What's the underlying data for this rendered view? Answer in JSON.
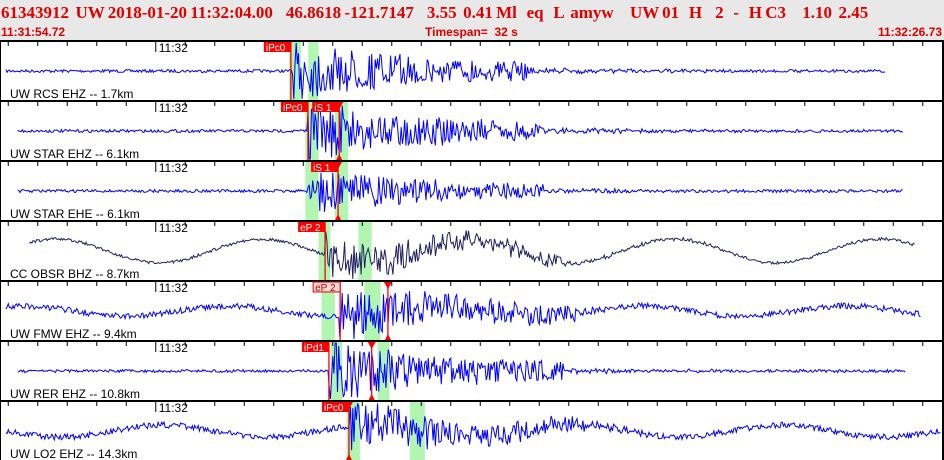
{
  "header": {
    "title": "61343912  UW 2018-01-20 11:32:04.00    46.8618 -121.7147    3.55  0.41 Ml   eq   L  amyw     UW 01   H    2   -   H C3     1.10  2.45",
    "start_time": "11:31:54.72",
    "timespan_label": "Timespan=  32 s",
    "end_time": "11:32:26.73"
  },
  "axis": {
    "minute_label": "11:32",
    "span_seconds": 32,
    "minute_offset_s": 5.28
  },
  "colors": {
    "trace": "#0000ff",
    "trace_dark": "#202060",
    "pick": "#ff0000",
    "window": "#b0f5b0",
    "header_text": "#e00000"
  },
  "channels": [
    {
      "label": "UW RCS EHZ -- 1.7km",
      "color": "#0000ff",
      "t0": 0.2,
      "t1": 30.0,
      "onset": 9.9,
      "amp": 26,
      "noise": 1.5,
      "wave": 0,
      "picks": [
        {
          "label": "iPc0",
          "time": 9.86,
          "style": "solid"
        }
      ],
      "windows": [
        [
          9.8,
          10.2
        ],
        [
          10.45,
          10.8
        ]
      ]
    },
    {
      "label": "UW STAR EHZ -- 6.1km",
      "color": "#0000ff",
      "t0": 0.6,
      "t1": 30.6,
      "onset": 10.4,
      "amp": 26,
      "noise": 1.5,
      "wave": 0,
      "picks": [
        {
          "label": "iPc0",
          "time": 10.44,
          "style": "solid"
        },
        {
          "label": "iS 1",
          "time": 11.5,
          "style": "solid",
          "tri": true
        }
      ],
      "windows": [
        [
          10.35,
          10.8
        ],
        [
          11.35,
          11.8
        ]
      ]
    },
    {
      "label": "UW STAR EHE -- 6.1km",
      "color": "#0000ff",
      "t0": 0.6,
      "t1": 30.6,
      "onset": 10.4,
      "amp": 20,
      "noise": 1.5,
      "wave": 0,
      "picks": [
        {
          "label": "iS 1",
          "time": 11.46,
          "style": "solid",
          "tri": true
        }
      ],
      "windows": [
        [
          10.35,
          10.8
        ],
        [
          11.35,
          11.8
        ]
      ]
    },
    {
      "label": "CC OBSR BHZ -- 8.7km",
      "color": "#202060",
      "t0": 1.0,
      "t1": 31.0,
      "onset": 11.0,
      "amp": 20,
      "noise": 1.5,
      "wave": 12,
      "picks": [
        {
          "label": "eP 2",
          "time": 11.02,
          "style": "solid"
        }
      ],
      "windows": [
        [
          10.8,
          11.2
        ],
        [
          12.15,
          12.6
        ]
      ]
    },
    {
      "label": "UW FMW EHZ -- 9.4km",
      "color": "#0000ff",
      "t0": 0.2,
      "t1": 31.2,
      "onset": 11.5,
      "amp": 24,
      "noise": 3,
      "wave": 5,
      "picks": [
        {
          "label": "eP 2",
          "time": 11.53,
          "style": "light"
        },
        {
          "label": "",
          "time": 13.15,
          "style": "solid",
          "tri": true
        }
      ],
      "windows": [
        [
          10.9,
          11.35
        ],
        [
          12.35,
          12.9
        ]
      ]
    },
    {
      "label": "UW RER EHZ -- 10.8km",
      "color": "#0000ff",
      "t0": 0.6,
      "t1": 30.7,
      "onset": 11.15,
      "amp": 26,
      "noise": 1.5,
      "wave": 0,
      "picks": [
        {
          "label": "iPd1",
          "time": 11.15,
          "style": "solid"
        },
        {
          "label": "",
          "time": 12.6,
          "style": "solid",
          "tri": true
        }
      ],
      "windows": [
        [
          11.2,
          11.6
        ],
        [
          12.8,
          13.2
        ]
      ]
    },
    {
      "label": "UW LO2 EHZ -- 14.3km",
      "color": "#0000ff",
      "t0": 0.2,
      "t1": 31.9,
      "onset": 11.8,
      "amp": 22,
      "noise": 3,
      "wave": 6,
      "picks": [
        {
          "label": "iPc0",
          "time": 11.83,
          "style": "solid",
          "tri": true
        }
      ],
      "windows": [
        [
          11.75,
          12.2
        ],
        [
          13.9,
          14.4
        ]
      ]
    }
  ]
}
